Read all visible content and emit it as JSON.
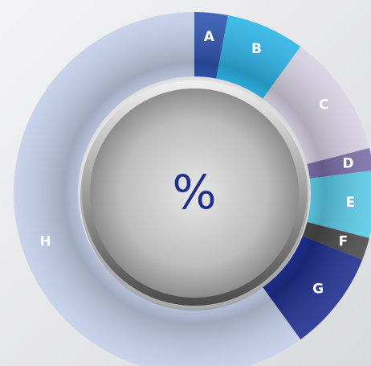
{
  "chart_data": {
    "type": "pie",
    "donut": true,
    "categories": [
      "A",
      "B",
      "C",
      "D",
      "E",
      "F",
      "G",
      "H"
    ],
    "values": [
      3,
      7,
      11,
      2,
      6,
      2,
      9,
      60
    ],
    "colors": [
      "#2f55b0",
      "#2eb4e6",
      "#d6d2e3",
      "#7a6fa8",
      "#5ccbe8",
      "#4a4a4a",
      "#1f2f8f",
      "#c3cfe8"
    ],
    "center_label": "%"
  }
}
